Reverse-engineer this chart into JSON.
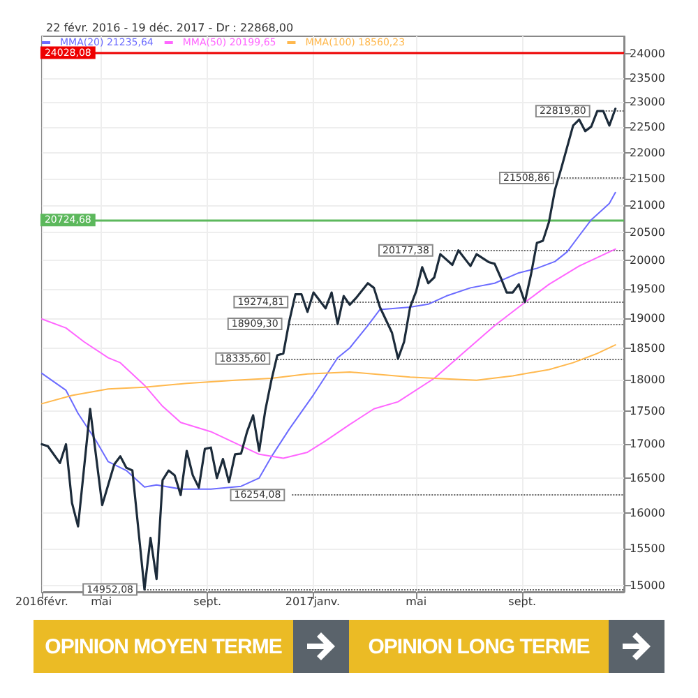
{
  "chart_data": {
    "type": "line",
    "title": "22 févr. 2016 - 19 déc. 2017 - Dr : 22868,00",
    "xlim": [
      "2016-02-22",
      "2017-12-28"
    ],
    "xticks": [
      {
        "value": "2016-02-22",
        "label": "2016févr."
      },
      {
        "value": "2016-05-01",
        "label": "mai"
      },
      {
        "value": "2016-09-01",
        "label": "sept."
      },
      {
        "value": "2017-01-01",
        "label": "2017janv."
      },
      {
        "value": "2017-05-01",
        "label": "mai"
      },
      {
        "value": "2017-09-01",
        "label": "sept."
      }
    ],
    "ylim": [
      14920,
      24380
    ],
    "log": "y",
    "yticks": [
      15000,
      15500,
      16000,
      16500,
      17000,
      17500,
      18000,
      18500,
      19000,
      19500,
      20000,
      20500,
      21000,
      21500,
      22000,
      22500,
      23000,
      23500,
      24000
    ],
    "grid": true,
    "legend": "top left",
    "marker": "none",
    "line_style": "solid",
    "series": [
      {
        "color": "#1c2b3a",
        "x": [
          "2016-02-22",
          "2016-02-29",
          "2016-03-14",
          "2016-03-21",
          "2016-03-28",
          "2016-04-04",
          "2016-04-18",
          "2016-05-02",
          "2016-05-16",
          "2016-05-23",
          "2016-05-30",
          "2016-06-06",
          "2016-06-20",
          "2016-06-27",
          "2016-07-04",
          "2016-07-11",
          "2016-07-18",
          "2016-07-25",
          "2016-08-01",
          "2016-08-08",
          "2016-08-15",
          "2016-08-22",
          "2016-08-29",
          "2016-09-05",
          "2016-09-12",
          "2016-09-19",
          "2016-09-26",
          "2016-10-03",
          "2016-10-10",
          "2016-10-17",
          "2016-10-24",
          "2016-10-31",
          "2016-11-07",
          "2016-11-14",
          "2016-11-21",
          "2016-11-28",
          "2016-12-05",
          "2016-12-12",
          "2016-12-19",
          "2016-12-26",
          "2017-01-02",
          "2017-01-16",
          "2017-01-23",
          "2017-01-30",
          "2017-02-06",
          "2017-02-13",
          "2017-02-20",
          "2017-03-06",
          "2017-03-13",
          "2017-03-20",
          "2017-04-03",
          "2017-04-10",
          "2017-04-17",
          "2017-04-24",
          "2017-05-01",
          "2017-05-08",
          "2017-05-15",
          "2017-05-22",
          "2017-05-29",
          "2017-06-12",
          "2017-06-19",
          "2017-07-03",
          "2017-07-10",
          "2017-07-24",
          "2017-07-31",
          "2017-08-07",
          "2017-08-14",
          "2017-08-21",
          "2017-08-28",
          "2017-09-04",
          "2017-09-11",
          "2017-09-18",
          "2017-09-25",
          "2017-10-02",
          "2017-10-09",
          "2017-10-16",
          "2017-10-30",
          "2017-11-06",
          "2017-11-13",
          "2017-11-20",
          "2017-11-27",
          "2017-12-04",
          "2017-12-11",
          "2017-12-18"
        ],
        "values": [
          17000,
          16970,
          16720,
          17000,
          16140,
          15810,
          17540,
          16110,
          16700,
          16820,
          16650,
          16610,
          14952,
          15650,
          15090,
          16470,
          16610,
          16540,
          16254,
          16900,
          16540,
          16360,
          16930,
          16950,
          16500,
          16780,
          16440,
          16850,
          16860,
          17190,
          17440,
          16900,
          17510,
          17980,
          18390,
          18420,
          18960,
          19410,
          19410,
          19110,
          19440,
          19170,
          19440,
          18909,
          19380,
          19230,
          19340,
          19600,
          19520,
          19190,
          18760,
          18336,
          18610,
          19190,
          19460,
          19880,
          19600,
          19700,
          20110,
          19920,
          20177,
          19900,
          20110,
          19970,
          19940,
          19700,
          19440,
          19440,
          19580,
          19275,
          19740,
          20310,
          20350,
          20690,
          21290,
          21680,
          22530,
          22650,
          22420,
          22510,
          22820,
          22820,
          22530,
          22868
        ]
      },
      {
        "name": "MMA(20) 21235,64",
        "color": "#6b6bff",
        "x": [
          "2016-02-22",
          "2016-03-21",
          "2016-04-04",
          "2016-04-25",
          "2016-05-09",
          "2016-05-30",
          "2016-06-20",
          "2016-07-04",
          "2016-08-01",
          "2016-09-05",
          "2016-10-10",
          "2016-10-31",
          "2016-11-14",
          "2016-12-05",
          "2017-01-02",
          "2017-01-30",
          "2017-02-13",
          "2017-03-06",
          "2017-03-20",
          "2017-04-24",
          "2017-05-15",
          "2017-06-05",
          "2017-07-03",
          "2017-07-31",
          "2017-08-28",
          "2017-09-18",
          "2017-10-09",
          "2017-10-23",
          "2017-11-06",
          "2017-11-20",
          "2017-12-11",
          "2017-12-18"
        ],
        "values": [
          18100,
          17830,
          17470,
          17050,
          16740,
          16610,
          16370,
          16400,
          16340,
          16340,
          16380,
          16500,
          16810,
          17230,
          17760,
          18350,
          18510,
          18880,
          19150,
          19190,
          19240,
          19380,
          19520,
          19600,
          19780,
          19860,
          19980,
          20150,
          20440,
          20730,
          21030,
          21235.64
        ]
      },
      {
        "name": "MMA(50) 20199,65",
        "color": "#ff66ff",
        "x": [
          "2016-02-22",
          "2016-03-21",
          "2016-04-11",
          "2016-05-09",
          "2016-05-23",
          "2016-06-20",
          "2016-07-11",
          "2016-08-01",
          "2016-09-05",
          "2016-10-03",
          "2016-10-31",
          "2016-11-28",
          "2016-12-26",
          "2017-01-16",
          "2017-02-13",
          "2017-03-13",
          "2017-04-10",
          "2017-05-22",
          "2017-06-19",
          "2017-07-31",
          "2017-09-04",
          "2017-10-02",
          "2017-11-06",
          "2017-12-18"
        ],
        "values": [
          18990,
          18840,
          18610,
          18350,
          18270,
          17910,
          17580,
          17330,
          17190,
          17020,
          16850,
          16790,
          16880,
          17050,
          17300,
          17540,
          17650,
          18020,
          18360,
          18880,
          19270,
          19580,
          19900,
          20199.65
        ]
      },
      {
        "name": "MMA(100) 18560,23",
        "color": "#ffb84d",
        "x": [
          "2016-02-22",
          "2016-03-28",
          "2016-05-09",
          "2016-06-20",
          "2016-08-08",
          "2016-10-03",
          "2016-11-14",
          "2016-12-26",
          "2017-02-13",
          "2017-04-24",
          "2017-05-22",
          "2017-07-10",
          "2017-08-21",
          "2017-10-02",
          "2017-10-30",
          "2017-11-27",
          "2017-12-18"
        ],
        "values": [
          17620,
          17750,
          17850,
          17880,
          17940,
          17990,
          18020,
          18090,
          18120,
          18040,
          18020,
          17990,
          18060,
          18160,
          18270,
          18420,
          18560.23
        ]
      }
    ],
    "ref_lines": [
      {
        "axis": "y",
        "value": 24028.08,
        "label": "24028,08",
        "color": "#ee0000",
        "line_style": "solid"
      },
      {
        "axis": "y",
        "value": 20724.68,
        "label": "20724,68",
        "color": "#5cb85c",
        "line_style": "solid"
      },
      {
        "axis": "y",
        "value": 22819.8,
        "label": "22819,80",
        "color": "#666666",
        "line_style": "dotted"
      },
      {
        "axis": "y",
        "value": 21508.86,
        "label": "21508,86",
        "color": "#666666",
        "line_style": "dotted"
      },
      {
        "axis": "y",
        "value": 20177.38,
        "label": "20177,38",
        "color": "#666666",
        "line_style": "dotted"
      },
      {
        "axis": "y",
        "value": 19274.81,
        "label": "19274,81",
        "color": "#666666",
        "line_style": "dotted"
      },
      {
        "axis": "y",
        "value": 18909.3,
        "label": "18909,30",
        "color": "#666666",
        "line_style": "dotted"
      },
      {
        "axis": "y",
        "value": 18335.6,
        "label": "18335,60",
        "color": "#666666",
        "line_style": "dotted"
      },
      {
        "axis": "y",
        "value": 16254.08,
        "label": "16254,08",
        "color": "#666666",
        "line_style": "dotted"
      },
      {
        "axis": "y",
        "value": 14952.08,
        "label": "14952,08",
        "color": "#666666",
        "line_style": "dotted"
      }
    ],
    "annotations": [
      "OPINION MOYEN TERME",
      "OPINION LONG TERME"
    ]
  }
}
